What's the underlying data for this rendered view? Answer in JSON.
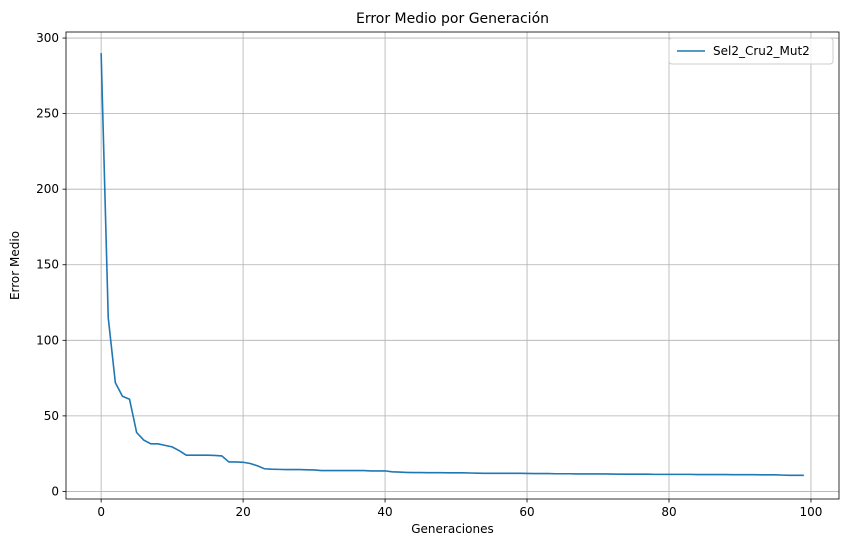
{
  "chart_data": {
    "type": "line",
    "title": "Error Medio por Generación",
    "xlabel": "Generaciones",
    "ylabel": "Error Medio",
    "xlim": [
      -4.95,
      103.95
    ],
    "ylim": [
      -5,
      304
    ],
    "xticks": [
      0,
      20,
      40,
      60,
      80,
      100
    ],
    "yticks": [
      0,
      50,
      100,
      150,
      200,
      250,
      300
    ],
    "grid": true,
    "legend_position": "top-right",
    "colors": {
      "series": "#1f77b4",
      "grid": "#b0b0b0"
    },
    "series": [
      {
        "name": "Sel2_Cru2_Mut2",
        "x": [
          0,
          1,
          2,
          3,
          4,
          5,
          6,
          7,
          8,
          9,
          10,
          11,
          12,
          13,
          14,
          15,
          16,
          17,
          18,
          19,
          20,
          21,
          22,
          23,
          24,
          25,
          26,
          27,
          28,
          29,
          30,
          31,
          32,
          33,
          34,
          35,
          36,
          37,
          38,
          39,
          40,
          41,
          42,
          43,
          44,
          45,
          46,
          47,
          48,
          49,
          50,
          51,
          52,
          53,
          54,
          55,
          56,
          57,
          58,
          59,
          60,
          61,
          62,
          63,
          64,
          65,
          66,
          67,
          68,
          69,
          70,
          71,
          72,
          73,
          74,
          75,
          76,
          77,
          78,
          79,
          80,
          81,
          82,
          83,
          84,
          85,
          86,
          87,
          88,
          89,
          90,
          91,
          92,
          93,
          94,
          95,
          96,
          97,
          98,
          99
        ],
        "y": [
          290,
          115,
          72,
          63,
          61,
          39,
          34,
          31.5,
          31.5,
          30.5,
          29.5,
          27,
          24,
          24,
          24,
          24,
          23.8,
          23.5,
          19.5,
          19.5,
          19.3,
          18.5,
          17,
          15,
          14.7,
          14.6,
          14.5,
          14.5,
          14.5,
          14.3,
          14.2,
          13.8,
          13.8,
          13.8,
          13.8,
          13.8,
          13.8,
          13.8,
          13.6,
          13.6,
          13.6,
          13.0,
          12.8,
          12.6,
          12.5,
          12.5,
          12.4,
          12.4,
          12.4,
          12.3,
          12.3,
          12.3,
          12.2,
          12.1,
          12.0,
          12.0,
          12.0,
          12.0,
          12.0,
          12.0,
          11.9,
          11.8,
          11.8,
          11.8,
          11.7,
          11.7,
          11.7,
          11.6,
          11.6,
          11.6,
          11.6,
          11.6,
          11.5,
          11.4,
          11.4,
          11.4,
          11.4,
          11.4,
          11.3,
          11.3,
          11.3,
          11.3,
          11.3,
          11.3,
          11.2,
          11.2,
          11.2,
          11.2,
          11.2,
          11.1,
          11.1,
          11.1,
          11.1,
          11.0,
          11.0,
          11.0,
          10.8,
          10.7,
          10.7,
          10.7
        ]
      }
    ]
  }
}
